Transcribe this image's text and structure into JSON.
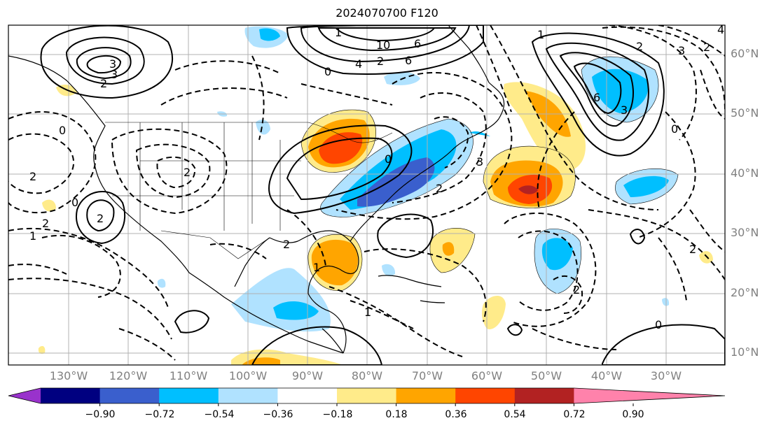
{
  "title": "2024070700 F120",
  "lat_labels": [
    "60°N",
    "50°N",
    "40°N",
    "30°N",
    "20°N",
    "10°N"
  ],
  "lon_labels": [
    "130°W",
    "120°W",
    "110°W",
    "100°W",
    "90°W",
    "80°W",
    "70°W",
    "60°W",
    "50°W",
    "40°W",
    "30°W"
  ],
  "colorbar": {
    "ticks": [
      "−0.90",
      "−0.72",
      "−0.54",
      "−0.36",
      "−0.18",
      "0.18",
      "0.36",
      "0.54",
      "0.72",
      "0.90"
    ],
    "colors": [
      "#9932cc",
      "#000080",
      "#3a5fcd",
      "#00bfff",
      "#b0e2ff",
      "#ffffff",
      "#ffeb8a",
      "#ffa500",
      "#ff4500",
      "#b22222",
      "#ff82ab"
    ]
  },
  "contour_labels": [
    "3",
    "2",
    "0",
    "1",
    "2",
    "2",
    "2",
    "1",
    "10",
    "6",
    "4",
    "2",
    "6",
    "0",
    "3",
    "2",
    "3",
    "6",
    "2",
    "0",
    "4",
    "3",
    "1",
    "2",
    "3",
    "0",
    "2",
    "2",
    "1",
    "2",
    "1",
    "2",
    "0",
    "0"
  ],
  "colors": {
    "grid": "#b0b0b0",
    "coast": "#000000",
    "label": "#808080"
  }
}
